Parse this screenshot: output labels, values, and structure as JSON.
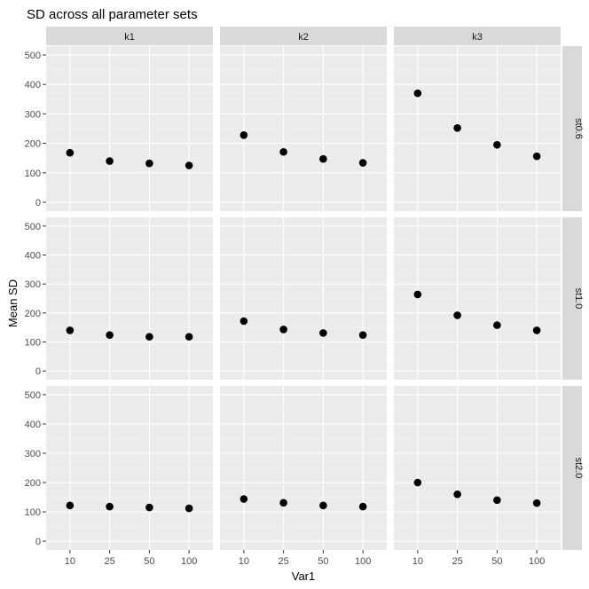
{
  "chart_data": {
    "type": "scatter",
    "title": "SD across all parameter sets",
    "xlabel": "Var1",
    "ylabel": "Mean SD",
    "x_categories": [
      "10",
      "25",
      "50",
      "100"
    ],
    "yticks": [
      0,
      100,
      200,
      300,
      400,
      500
    ],
    "ylim": [
      -30,
      530
    ],
    "grid": true,
    "facet_cols": [
      "k1",
      "k2",
      "k3"
    ],
    "facet_rows": [
      "st0.6",
      "st1.0",
      "st2.0"
    ],
    "point_color": "#000000",
    "panel_background": "#ebebeb",
    "strip_background": "#d9d9d9",
    "panels": [
      {
        "row": "st0.6",
        "col": "k1",
        "values": [
          168,
          140,
          132,
          125
        ]
      },
      {
        "row": "st0.6",
        "col": "k2",
        "values": [
          228,
          171,
          147,
          134
        ]
      },
      {
        "row": "st0.6",
        "col": "k3",
        "values": [
          370,
          252,
          195,
          156
        ]
      },
      {
        "row": "st1.0",
        "col": "k1",
        "values": [
          140,
          124,
          118,
          118
        ]
      },
      {
        "row": "st1.0",
        "col": "k2",
        "values": [
          172,
          143,
          131,
          124
        ]
      },
      {
        "row": "st1.0",
        "col": "k3",
        "values": [
          264,
          192,
          158,
          140
        ]
      },
      {
        "row": "st2.0",
        "col": "k1",
        "values": [
          122,
          118,
          115,
          112
        ]
      },
      {
        "row": "st2.0",
        "col": "k2",
        "values": [
          144,
          131,
          122,
          118
        ]
      },
      {
        "row": "st2.0",
        "col": "k3",
        "values": [
          200,
          160,
          140,
          130
        ]
      }
    ]
  }
}
